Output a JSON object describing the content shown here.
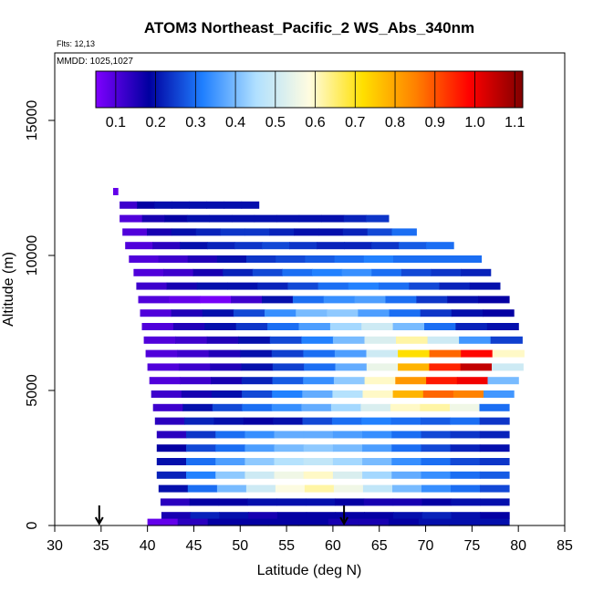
{
  "chart_data": {
    "type": "heatmap",
    "title": "ATOM3 Northeast_Pacific_2 WS_Abs_340nm",
    "annotations": {
      "flights": "Flts: 12,13",
      "dates": "MMDD: 1025,1027"
    },
    "xlabel": "Latitude (deg N)",
    "ylabel": "Altitude (m)",
    "xlim": [
      30,
      85
    ],
    "ylim": [
      0,
      17500
    ],
    "x_ticks": [
      30,
      35,
      40,
      45,
      50,
      55,
      60,
      65,
      70,
      75,
      80,
      85
    ],
    "y_ticks": [
      0,
      5000,
      10000,
      15000
    ],
    "colorbar": {
      "range": [
        0.05,
        1.12
      ],
      "ticks": [
        0.1,
        0.2,
        0.3,
        0.4,
        0.5,
        0.6,
        0.7,
        0.8,
        0.9,
        1.0,
        1.1
      ],
      "tick_labels": [
        "0.1",
        "0.2",
        "0.3",
        "0.4",
        "0.5",
        "0.6",
        "0.7",
        "0.8",
        "0.9",
        "1.0",
        "1.1"
      ],
      "colors": [
        "#7f00ff",
        "#0000a0",
        "#1f7fff",
        "#b0e0ff",
        "#fffce0",
        "#ffe000",
        "#ff8000",
        "#ff0000",
        "#800000"
      ]
    },
    "profile_markers_lat": [
      34.8,
      61.2
    ],
    "altitude_bins": [
      {
        "alt": [
          12250,
          12500
        ],
        "lat": [
          36.3,
          36.8
        ],
        "values": [
          0.08
        ]
      },
      {
        "alt": [
          11750,
          12000
        ],
        "lat": [
          37.0,
          52.0
        ],
        "values": [
          0.12,
          0.18,
          0.2,
          0.2,
          0.2,
          0.2,
          0.2,
          0.2
        ]
      },
      {
        "alt": [
          11250,
          11500
        ],
        "lat": [
          37.0,
          66.0
        ],
        "values": [
          0.1,
          0.16,
          0.18,
          0.2,
          0.2,
          0.2,
          0.2,
          0.2,
          0.2,
          0.2,
          0.22,
          0.24
        ]
      },
      {
        "alt": [
          10750,
          11000
        ],
        "lat": [
          37.3,
          69.0
        ],
        "values": [
          0.1,
          0.16,
          0.2,
          0.22,
          0.24,
          0.24,
          0.22,
          0.2,
          0.2,
          0.22,
          0.26,
          0.3
        ]
      },
      {
        "alt": [
          10250,
          10500
        ],
        "lat": [
          37.6,
          73.0
        ],
        "values": [
          0.1,
          0.14,
          0.2,
          0.22,
          0.24,
          0.26,
          0.24,
          0.22,
          0.22,
          0.24,
          0.28,
          0.3
        ]
      },
      {
        "alt": [
          9750,
          10000
        ],
        "lat": [
          38.0,
          76.0
        ],
        "values": [
          0.1,
          0.12,
          0.15,
          0.2,
          0.24,
          0.26,
          0.28,
          0.3,
          0.32,
          0.3,
          0.3,
          0.3
        ]
      },
      {
        "alt": [
          9250,
          9500
        ],
        "lat": [
          38.5,
          77.0
        ],
        "values": [
          0.1,
          0.12,
          0.16,
          0.22,
          0.26,
          0.3,
          0.32,
          0.34,
          0.3,
          0.26,
          0.24,
          0.22
        ]
      },
      {
        "alt": [
          8750,
          9000
        ],
        "lat": [
          38.8,
          78.0
        ],
        "values": [
          0.12,
          0.16,
          0.2,
          0.2,
          0.22,
          0.26,
          0.3,
          0.32,
          0.3,
          0.26,
          0.22,
          0.2
        ]
      },
      {
        "alt": [
          8250,
          8500
        ],
        "lat": [
          39.0,
          79.0
        ],
        "values": [
          0.1,
          0.08,
          0.06,
          0.12,
          0.2,
          0.3,
          0.34,
          0.36,
          0.3,
          0.24,
          0.2,
          0.18
        ]
      },
      {
        "alt": [
          7750,
          8000
        ],
        "lat": [
          39.2,
          79.5
        ],
        "values": [
          0.1,
          0.15,
          0.2,
          0.26,
          0.34,
          0.4,
          0.42,
          0.36,
          0.3,
          0.24,
          0.2,
          0.18
        ]
      },
      {
        "alt": [
          7250,
          7500
        ],
        "lat": [
          39.4,
          80.0
        ],
        "values": [
          0.1,
          0.15,
          0.2,
          0.24,
          0.3,
          0.36,
          0.44,
          0.5,
          0.4,
          0.3,
          0.22,
          0.2
        ]
      },
      {
        "alt": [
          6750,
          7000
        ],
        "lat": [
          39.6,
          80.4
        ],
        "values": [
          0.1,
          0.12,
          0.15,
          0.2,
          0.26,
          0.32,
          0.4,
          0.52,
          0.62,
          0.5,
          0.35,
          0.25
        ]
      },
      {
        "alt": [
          6250,
          6500
        ],
        "lat": [
          39.8,
          80.6
        ],
        "values": [
          0.1,
          0.12,
          0.15,
          0.2,
          0.25,
          0.3,
          0.36,
          0.5,
          0.72,
          0.88,
          0.98,
          0.6
        ]
      },
      {
        "alt": [
          5750,
          6000
        ],
        "lat": [
          40.0,
          80.5
        ],
        "values": [
          0.1,
          0.12,
          0.15,
          0.2,
          0.25,
          0.3,
          0.38,
          0.55,
          0.78,
          0.95,
          1.05,
          0.5
        ]
      },
      {
        "alt": [
          5250,
          5500
        ],
        "lat": [
          40.2,
          80.0
        ],
        "values": [
          0.1,
          0.12,
          0.16,
          0.22,
          0.28,
          0.34,
          0.42,
          0.6,
          0.82,
          0.96,
          1.0,
          0.4
        ]
      },
      {
        "alt": [
          4750,
          5000
        ],
        "lat": [
          40.4,
          79.5
        ],
        "values": [
          0.12,
          0.16,
          0.2,
          0.26,
          0.32,
          0.38,
          0.46,
          0.6,
          0.78,
          0.88,
          0.85,
          0.35
        ]
      },
      {
        "alt": [
          4250,
          4500
        ],
        "lat": [
          40.6,
          79.0
        ],
        "values": [
          0.12,
          0.2,
          0.26,
          0.3,
          0.34,
          0.38,
          0.44,
          0.52,
          0.6,
          0.62,
          0.56,
          0.3
        ]
      },
      {
        "alt": [
          3750,
          4000
        ],
        "lat": [
          40.8,
          79.0
        ],
        "values": [
          0.14,
          0.22,
          0.2,
          0.18,
          0.2,
          0.26,
          0.3,
          0.32,
          0.3,
          0.28,
          0.3,
          0.24
        ]
      },
      {
        "alt": [
          3250,
          3500
        ],
        "lat": [
          41.0,
          79.0
        ],
        "values": [
          0.14,
          0.24,
          0.3,
          0.34,
          0.38,
          0.38,
          0.36,
          0.34,
          0.3,
          0.26,
          0.24,
          0.22
        ]
      },
      {
        "alt": [
          2750,
          3000
        ],
        "lat": [
          41.0,
          79.0
        ],
        "values": [
          0.18,
          0.26,
          0.3,
          0.36,
          0.4,
          0.42,
          0.4,
          0.36,
          0.3,
          0.26,
          0.22,
          0.2
        ]
      },
      {
        "alt": [
          2250,
          2500
        ],
        "lat": [
          41.0,
          79.0
        ],
        "values": [
          0.2,
          0.3,
          0.36,
          0.42,
          0.46,
          0.48,
          0.44,
          0.4,
          0.34,
          0.3,
          0.26,
          0.24
        ]
      },
      {
        "alt": [
          1750,
          2000
        ],
        "lat": [
          41.0,
          79.0
        ],
        "values": [
          0.22,
          0.32,
          0.42,
          0.5,
          0.56,
          0.6,
          0.52,
          0.44,
          0.38,
          0.34,
          0.3,
          0.28
        ]
      },
      {
        "alt": [
          1250,
          1500
        ],
        "lat": [
          41.2,
          79.0
        ],
        "values": [
          0.2,
          0.3,
          0.4,
          0.5,
          0.58,
          0.62,
          0.56,
          0.48,
          0.4,
          0.34,
          0.3,
          0.26
        ]
      },
      {
        "alt": [
          750,
          1000
        ],
        "lat": [
          41.4,
          79.0
        ],
        "values": [
          0.14,
          0.18,
          0.18,
          0.2,
          0.2,
          0.2,
          0.18,
          0.16,
          0.16,
          0.18,
          0.2,
          0.2
        ]
      },
      {
        "alt": [
          250,
          500
        ],
        "lat": [
          41.5,
          79.0
        ],
        "values": [
          0.16,
          0.22,
          0.2,
          0.16,
          0.18,
          0.18,
          0.18,
          0.18,
          0.2,
          0.22,
          0.2,
          0.18
        ]
      },
      {
        "alt": [
          0,
          250
        ],
        "lat": [
          40.0,
          79.0
        ],
        "values": [
          0.08,
          0.14,
          0.18,
          0.18,
          0.18,
          0.18,
          0.16,
          0.16,
          0.18,
          0.2,
          0.2,
          0.2
        ]
      }
    ]
  }
}
